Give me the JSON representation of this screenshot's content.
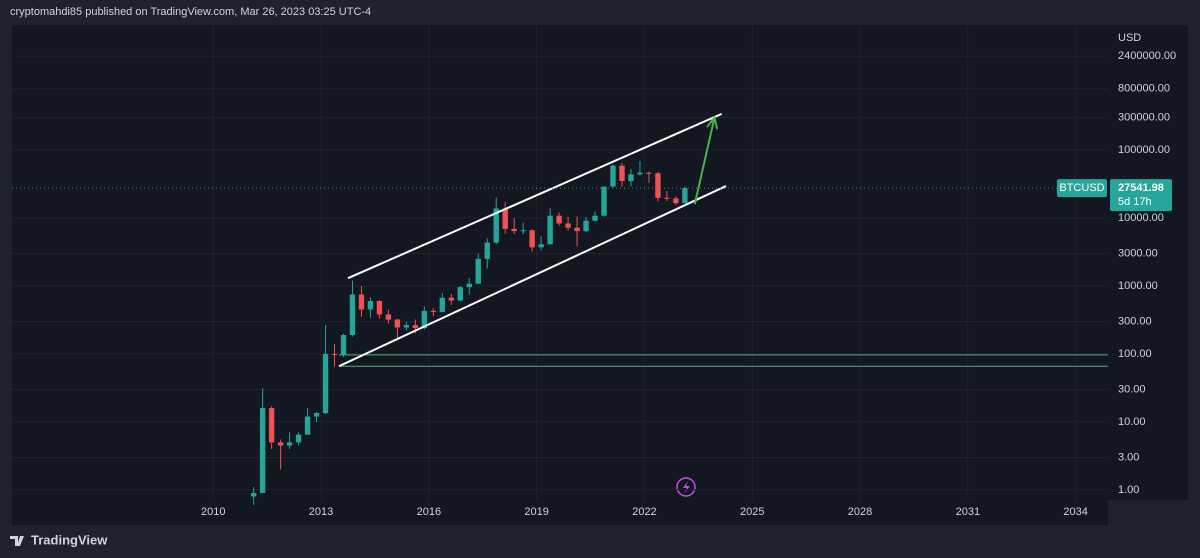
{
  "header": {
    "text": "cryptomahdi85 published on TradingView.com, Mar 26, 2023 03:25 UTC-4"
  },
  "footer": {
    "brand": "TradingView"
  },
  "chart_data": {
    "type": "candlestick",
    "symbol": "BTCUSD",
    "currency": "USD",
    "last_price": 27541.98,
    "countdown": "5d 17h",
    "log_scale": true,
    "grid": true,
    "up_color": "#26a69a",
    "down_color": "#ef5350",
    "xlim": [
      2004.4,
      2034.9
    ],
    "xticks": [
      2010,
      2013,
      2016,
      2019,
      2022,
      2025,
      2028,
      2031,
      2034
    ],
    "ylim": [
      0.71,
      6900000
    ],
    "yticks": [
      {
        "value": 1,
        "label": "1.00"
      },
      {
        "value": 3,
        "label": "3.00"
      },
      {
        "value": 10,
        "label": "10.00"
      },
      {
        "value": 30,
        "label": "30.00"
      },
      {
        "value": 100,
        "label": "100.00"
      },
      {
        "value": 300,
        "label": "300.00"
      },
      {
        "value": 1000,
        "label": "1000.00"
      },
      {
        "value": 3000,
        "label": "3000.00"
      },
      {
        "value": 10000,
        "label": "10000.00"
      },
      {
        "value": 100000,
        "label": "100000.00"
      },
      {
        "value": 300000,
        "label": "300000.00"
      },
      {
        "value": 800000,
        "label": "800000.00"
      },
      {
        "value": 2400000,
        "label": "2400000.00"
      }
    ],
    "x": [
      2011.125,
      2011.375,
      2011.625,
      2011.875,
      2012.125,
      2012.375,
      2012.625,
      2012.875,
      2013.125,
      2013.375,
      2013.625,
      2013.875,
      2014.125,
      2014.375,
      2014.625,
      2014.875,
      2015.125,
      2015.375,
      2015.625,
      2015.875,
      2016.125,
      2016.375,
      2016.625,
      2016.875,
      2017.125,
      2017.375,
      2017.625,
      2017.875,
      2018.125,
      2018.375,
      2018.625,
      2018.875,
      2019.125,
      2019.375,
      2019.625,
      2019.875,
      2020.125,
      2020.375,
      2020.625,
      2020.875,
      2021.125,
      2021.375,
      2021.625,
      2021.875,
      2022.125,
      2022.375,
      2022.625,
      2022.875,
      2023.125
    ],
    "open": [
      0.8,
      0.9,
      16,
      5,
      4.5,
      5,
      6.5,
      12,
      13.5,
      100,
      97,
      190,
      750,
      450,
      600,
      380,
      320,
      245,
      265,
      240,
      430,
      415,
      670,
      610,
      960,
      1080,
      2500,
      4350,
      13800,
      6900,
      6400,
      6600,
      3700,
      4100,
      10800,
      8300,
      7200,
      6400,
      9100,
      10800,
      29000,
      58800,
      35000,
      43800,
      46300,
      45500,
      19800,
      19400,
      16500
    ],
    "high": [
      1.1,
      31,
      17,
      5.5,
      7,
      7,
      16,
      14,
      266,
      140,
      200,
      1200,
      1000,
      680,
      620,
      450,
      330,
      300,
      320,
      500,
      470,
      780,
      760,
      1000,
      1300,
      3000,
      5000,
      19800,
      17200,
      9990,
      8500,
      6800,
      5400,
      13900,
      12000,
      10400,
      10500,
      10400,
      12500,
      29300,
      61800,
      64900,
      52900,
      69000,
      48200,
      47400,
      25200,
      21000,
      28800
    ],
    "low": [
      0.6,
      0.9,
      4,
      2,
      4,
      4.5,
      6.5,
      10,
      13,
      65,
      90,
      180,
      350,
      340,
      330,
      280,
      170,
      220,
      200,
      230,
      360,
      410,
      530,
      600,
      750,
      1080,
      1800,
      4100,
      5900,
      5800,
      5800,
      3200,
      3350,
      4100,
      7700,
      6500,
      3800,
      6200,
      8900,
      10400,
      28100,
      28800,
      29300,
      42000,
      32900,
      17600,
      17600,
      15500,
      16500
    ],
    "close": [
      0.9,
      16,
      5,
      4.5,
      5,
      6.5,
      12,
      13.5,
      100,
      97,
      190,
      750,
      450,
      600,
      380,
      320,
      245,
      265,
      240,
      430,
      415,
      670,
      610,
      960,
      1080,
      2500,
      4350,
      13800,
      6900,
      6400,
      6600,
      3700,
      4100,
      10800,
      8300,
      7200,
      6400,
      9100,
      10800,
      29000,
      58800,
      35000,
      43800,
      46300,
      45500,
      19800,
      19400,
      16500,
      27541.98
    ],
    "drawings": {
      "levels": [
        97,
        66
      ],
      "level_color": "#4caf7f",
      "channel_color": "#ffffff",
      "channel": [
        {
          "x": [
            2013.75,
            2024.15
          ],
          "y": [
            1300,
            340000
          ]
        },
        {
          "x": [
            2013.5,
            2024.27
          ],
          "y": [
            66,
            29500
          ]
        }
      ],
      "arrow": {
        "x": [
          2023.4,
          2023.95
        ],
        "y": [
          16000,
          300000
        ],
        "color": "#4caf50"
      }
    }
  }
}
